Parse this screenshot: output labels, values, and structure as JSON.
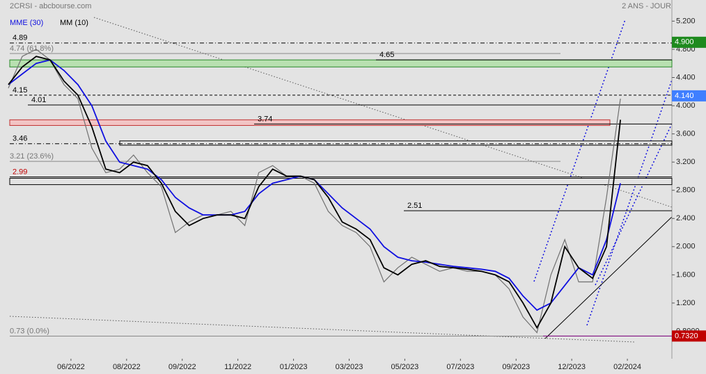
{
  "chart_data": {
    "type": "line",
    "title": "2CRSI - abcbourse.com",
    "subtitle": "2 ANS - JOUR",
    "x": [
      -2.25,
      -1.75,
      -1.25,
      -0.75,
      -0.25,
      0.25,
      0.75,
      1.25,
      1.75,
      2.25,
      2.75,
      3.25,
      3.75,
      4.25,
      4.75,
      5.25,
      5.75,
      6.25,
      6.75,
      7.25,
      7.75,
      8.25,
      8.75,
      9.25,
      9.75,
      10.25,
      10.75,
      11.25,
      11.75,
      12.25,
      12.75,
      13.25,
      13.75,
      14.25,
      14.75,
      15.25,
      15.75,
      16.25,
      16.75,
      17.25,
      17.75,
      18.25,
      18.75,
      19.25,
      19.75
    ],
    "xlim": [
      -2.2,
      21.6
    ],
    "xticks": [
      {
        "value": 0,
        "label": "06/2022"
      },
      {
        "value": 2,
        "label": "08/2022"
      },
      {
        "value": 4,
        "label": "09/2022"
      },
      {
        "value": 6,
        "label": "11/2022"
      },
      {
        "value": 8,
        "label": "01/2023"
      },
      {
        "value": 10,
        "label": "03/2023"
      },
      {
        "value": 12,
        "label": "05/2023"
      },
      {
        "value": 14,
        "label": "07/2023"
      },
      {
        "value": 16,
        "label": "09/2023"
      },
      {
        "value": 18,
        "label": "12/2023"
      },
      {
        "value": 20,
        "label": "02/2024"
      }
    ],
    "ylim": [
      0.41,
      5.5
    ],
    "yticks": [
      {
        "value": 5.2,
        "label": "5.200"
      },
      {
        "value": 4.8,
        "label": "4.800"
      },
      {
        "value": 4.4,
        "label": "4.400"
      },
      {
        "value": 4.0,
        "label": "4.000"
      },
      {
        "value": 3.6,
        "label": "3.600"
      },
      {
        "value": 3.2,
        "label": "3.200"
      },
      {
        "value": 2.8,
        "label": "2.800"
      },
      {
        "value": 2.4,
        "label": "2.400"
      },
      {
        "value": 2.0,
        "label": "2.000"
      },
      {
        "value": 1.6,
        "label": "1.600"
      },
      {
        "value": 1.2,
        "label": "1.200"
      },
      {
        "value": 0.8,
        "label": "0.8000"
      }
    ],
    "series": [
      {
        "color": "#707070",
        "values": [
          4.25,
          4.7,
          4.8,
          4.65,
          4.3,
          4.1,
          3.4,
          3.05,
          3.1,
          3.3,
          3.05,
          2.85,
          2.2,
          2.35,
          2.45,
          2.45,
          2.5,
          2.3,
          3.05,
          3.15,
          3.0,
          3.0,
          2.9,
          2.5,
          2.3,
          2.2,
          2.0,
          1.5,
          1.7,
          1.85,
          1.75,
          1.65,
          1.7,
          1.65,
          1.65,
          1.6,
          1.4,
          1.0,
          0.78,
          1.6,
          2.1,
          1.5,
          1.5,
          2.7,
          4.1
        ]
      },
      {
        "name": "MME (30)",
        "color": "#1010e0",
        "values": [
          4.3,
          4.45,
          4.6,
          4.65,
          4.5,
          4.3,
          4.0,
          3.5,
          3.2,
          3.15,
          3.1,
          2.95,
          2.7,
          2.55,
          2.45,
          2.45,
          2.45,
          2.5,
          2.75,
          2.9,
          2.95,
          3.0,
          2.95,
          2.75,
          2.55,
          2.4,
          2.25,
          2.0,
          1.85,
          1.8,
          1.78,
          1.75,
          1.72,
          1.7,
          1.68,
          1.65,
          1.55,
          1.3,
          1.1,
          1.2,
          1.45,
          1.7,
          1.6,
          2.1,
          2.9
        ]
      },
      {
        "name": "MM (10)",
        "color": "#000000",
        "values": [
          4.3,
          4.55,
          4.7,
          4.65,
          4.35,
          4.15,
          3.7,
          3.1,
          3.05,
          3.2,
          3.15,
          2.9,
          2.5,
          2.3,
          2.4,
          2.45,
          2.45,
          2.4,
          2.85,
          3.1,
          3.0,
          3.0,
          2.95,
          2.7,
          2.35,
          2.25,
          2.1,
          1.7,
          1.6,
          1.75,
          1.8,
          1.72,
          1.7,
          1.68,
          1.65,
          1.6,
          1.5,
          1.2,
          0.85,
          1.2,
          2.0,
          1.7,
          1.55,
          2.0,
          3.8
        ]
      }
    ],
    "levels": [
      4.89,
      {
        "value": 4.74,
        "label": "4.74 (61.8%)"
      },
      4.65,
      4.15,
      4.01,
      3.74,
      3.46,
      {
        "value": 3.21,
        "label": "3.21 (23.6%)"
      },
      2.99,
      2.51,
      {
        "value": 0.73,
        "label": "0.73 (0.0%)"
      }
    ],
    "zones": [
      {
        "from": 4.55,
        "to": 4.65,
        "color": "#b8e0b0",
        "edge": "#2a8a2a"
      },
      {
        "from": 3.72,
        "to": 3.8,
        "color": "#f2c4c4",
        "edge": "#c03030"
      },
      {
        "from": 3.44,
        "to": 3.5,
        "color": "#e3e3e3",
        "edge": "#000000"
      },
      {
        "from": 2.88,
        "to": 2.97,
        "color": "#e3e3e3",
        "edge": "#000000"
      }
    ],
    "price_tags": [
      {
        "value": 4.9,
        "label": "4.900",
        "color": "#1e8a1e"
      },
      {
        "value": 4.14,
        "label": "4.140",
        "color": "#3f7fff"
      },
      {
        "value": 0.732,
        "label": "0.7320",
        "color": "#c00000"
      }
    ]
  }
}
